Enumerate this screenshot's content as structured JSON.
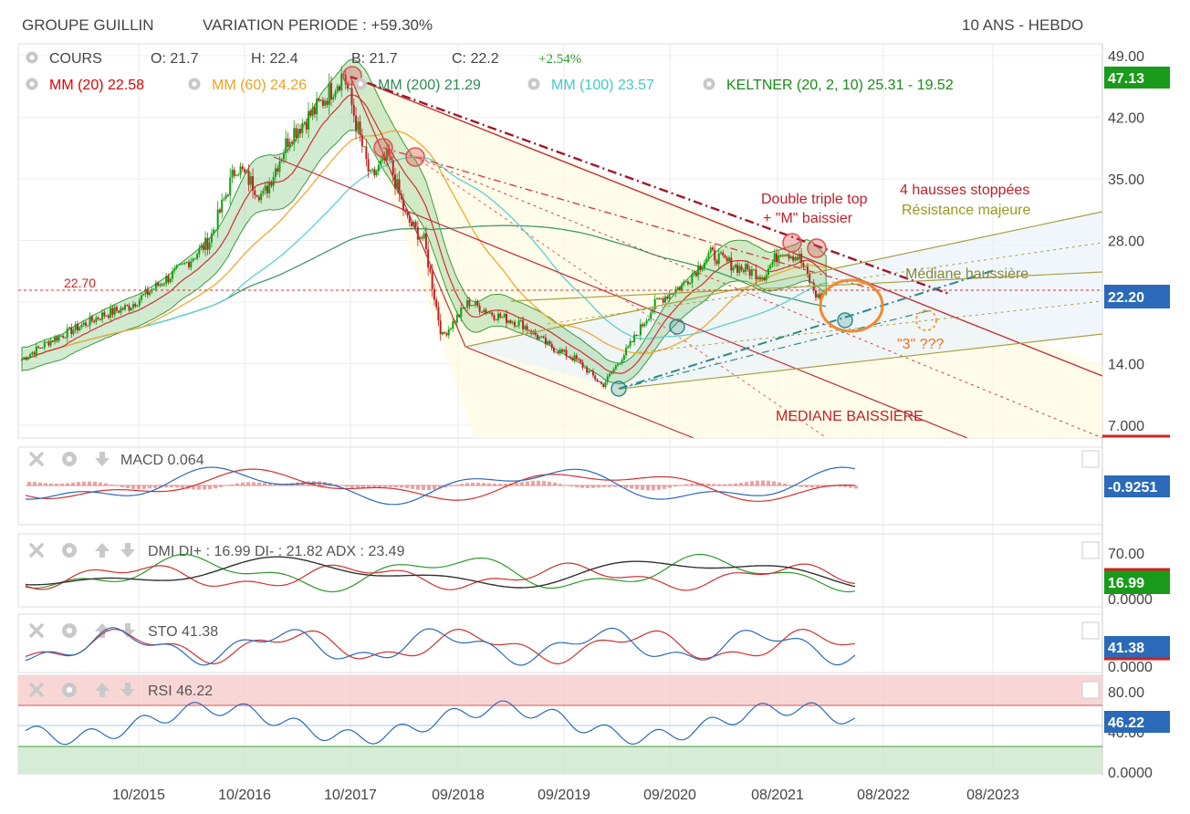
{
  "header": {
    "company": "GROUPE GUILLIN",
    "variation": "VARIATION PERIODE : +59.30%",
    "period": "10 ANS - HEBDO"
  },
  "legend": {
    "cours": {
      "label": "COURS",
      "o": "O: 21.7",
      "h": "H: 22.4",
      "b": "B: 21.7",
      "c": "C: 22.2",
      "pct": "+2.54%"
    },
    "indicators": [
      {
        "label": "MM (20)",
        "value": "22.58",
        "color": "#e00000"
      },
      {
        "label": "MM (60)",
        "value": "24.26",
        "color": "#f0a020"
      },
      {
        "label": "MM (200)",
        "value": "21.29",
        "color": "#2e8b57"
      },
      {
        "label": "MM (100)",
        "value": "23.57",
        "color": "#40c8c8"
      },
      {
        "label": "KELTNER (20, 2, 10)",
        "value": "25.31 - 19.52",
        "color": "#1a8a1a"
      }
    ]
  },
  "annotations": {
    "double_top": "Double triple top",
    "m_baissier": "+ \"M\" baissier",
    "hausses": "4 hausses stoppées",
    "resistance": "Résistance majeure",
    "mediane_haussiere": "Médiane haussière",
    "three": "\"3\" ???",
    "mediane_baissiere": "MEDIANE BAISSIERE",
    "level": "22.70"
  },
  "price_axis": {
    "ticks": [
      "49.00",
      "42.00",
      "35.00",
      "28.00",
      "14.00",
      "7.000"
    ],
    "badge_top": "47.13",
    "badge_last": "22.20"
  },
  "panels": {
    "macd": {
      "label": "MACD",
      "value": "0.064",
      "badge": "-0.9251"
    },
    "dmi": {
      "label": "DMI",
      "value": "DI+ : 16.99 DI- : 21.82 ADX : 23.49",
      "tick_top": "70.00",
      "tick_bottom": "0.0000",
      "badge": "16.99"
    },
    "sto": {
      "label": "STO",
      "value": "41.38",
      "tick_bottom": "0.0000",
      "badge": "41.38"
    },
    "rsi": {
      "label": "RSI",
      "value": "46.22",
      "tick_top": "80.00",
      "tick_mid": "40.00",
      "tick_bottom": "0.0000",
      "badge": "46.22"
    }
  },
  "x_axis": [
    "10/2015",
    "10/2016",
    "10/2017",
    "09/2018",
    "09/2019",
    "09/2020",
    "08/2021",
    "08/2022",
    "08/2023"
  ],
  "chart_data": {
    "type": "candlestick",
    "title": "GROUPE GUILLIN",
    "ylim": [
      7,
      49
    ],
    "price_path": [
      [
        "2014-10",
        14.5
      ],
      [
        "2015-01",
        16.5
      ],
      [
        "2015-07",
        19.5
      ],
      [
        "2015-10",
        20.5
      ],
      [
        "2016-04",
        25.0
      ],
      [
        "2016-07",
        28.0
      ],
      [
        "2016-10",
        36.5
      ],
      [
        "2017-01",
        33.0
      ],
      [
        "2017-04",
        40.0
      ],
      [
        "2017-07",
        43.0
      ],
      [
        "2017-10",
        47.0
      ],
      [
        "2018-01",
        35.0
      ],
      [
        "2018-03",
        37.5
      ],
      [
        "2018-05",
        30.5
      ],
      [
        "2018-07",
        28.0
      ],
      [
        "2018-09",
        17.0
      ],
      [
        "2018-12",
        21.0
      ],
      [
        "2019-03",
        19.5
      ],
      [
        "2019-06",
        18.5
      ],
      [
        "2019-09",
        16.0
      ],
      [
        "2019-12",
        14.5
      ],
      [
        "2020-03",
        11.5
      ],
      [
        "2020-06",
        16.0
      ],
      [
        "2020-09",
        21.0
      ],
      [
        "2020-12",
        23.0
      ],
      [
        "2021-03",
        26.5
      ],
      [
        "2021-06",
        25.0
      ],
      [
        "2021-09",
        24.0
      ],
      [
        "2021-11",
        27.0
      ],
      [
        "2022-01",
        26.0
      ],
      [
        "2022-03",
        21.5
      ],
      [
        "2022-04",
        22.2
      ]
    ],
    "series": [
      {
        "name": "MM (20)",
        "last": 22.58
      },
      {
        "name": "MM (60)",
        "last": 24.26
      },
      {
        "name": "MM (200)",
        "last": 21.29
      },
      {
        "name": "MM (100)",
        "last": 23.57
      },
      {
        "name": "KELTNER (20, 2, 10)",
        "upper": 25.31,
        "lower": 19.52
      }
    ],
    "indicators": {
      "MACD": 0.064,
      "DI+": 16.99,
      "DI-": 21.82,
      "ADX": 23.49,
      "STO": 41.38,
      "RSI": 46.22
    }
  }
}
